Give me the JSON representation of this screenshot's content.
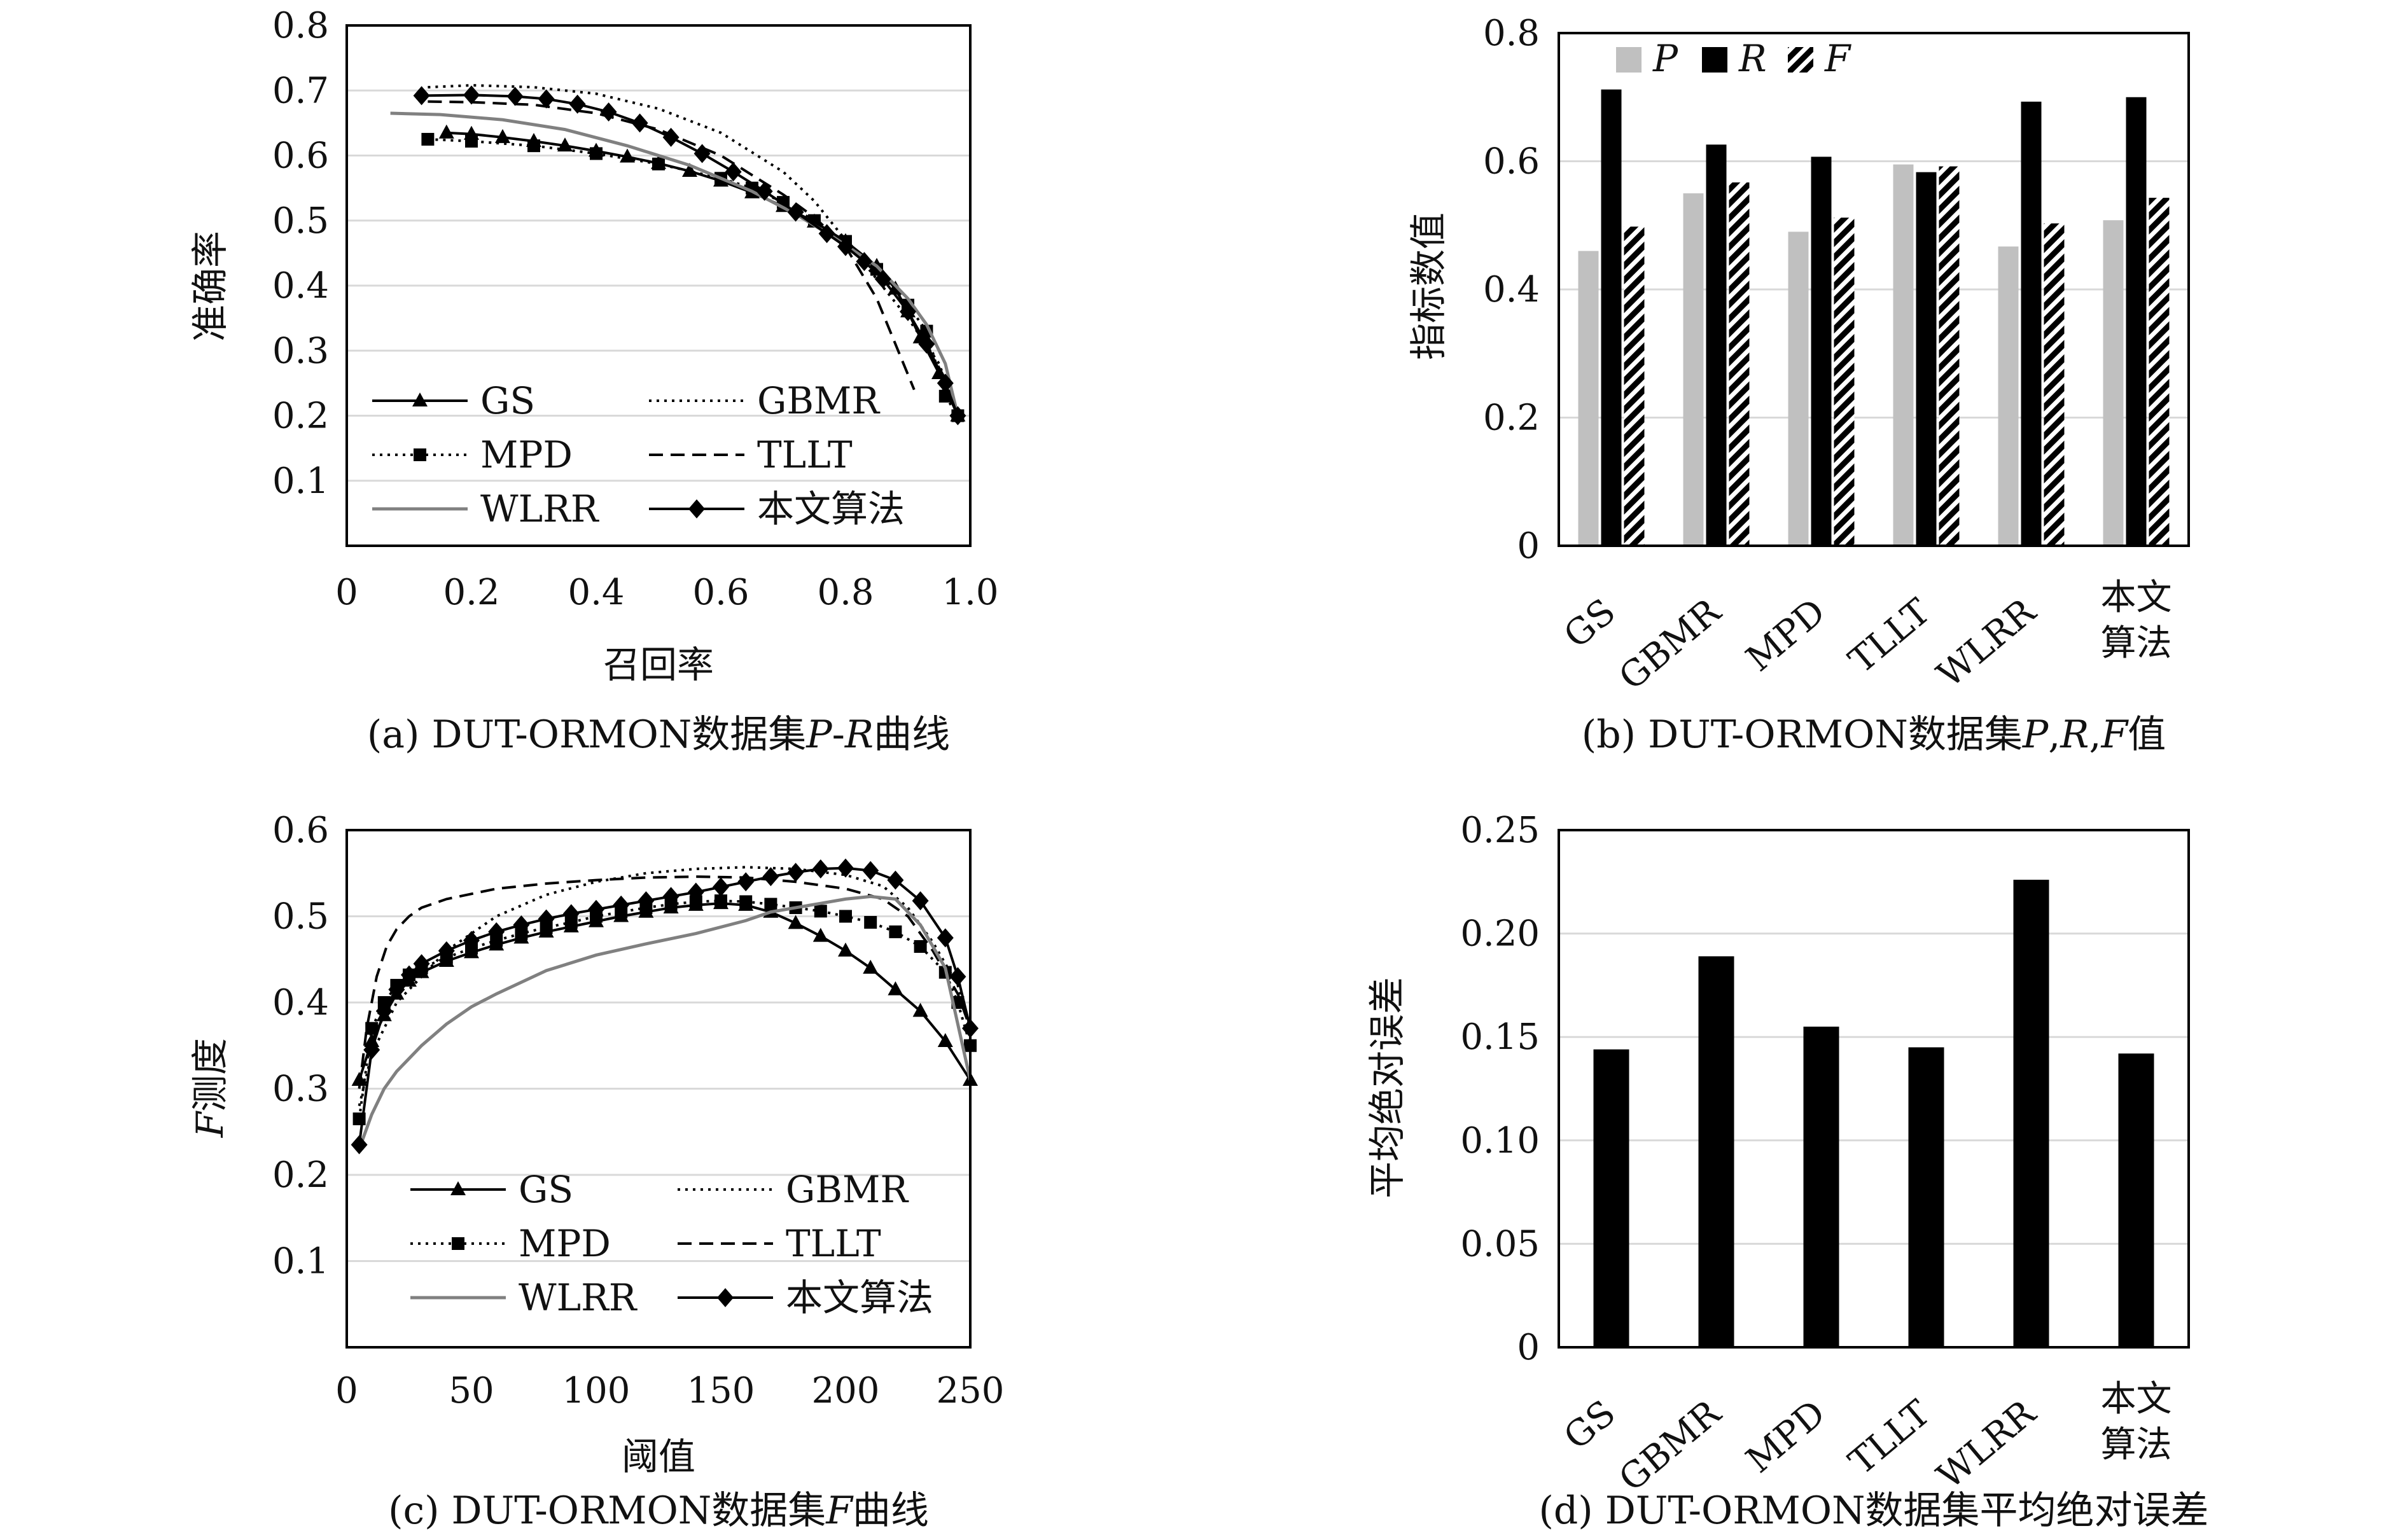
{
  "chart_data": [
    {
      "id": "a",
      "type": "line",
      "caption": "(a) DUT-ORMON数据集P-R曲线",
      "caption_parts": [
        "(a) DUT-ORMON数据集",
        "P",
        "-",
        "R",
        "曲线"
      ],
      "xlabel": "召回率",
      "ylabel": "准确率",
      "xlim": [
        0,
        1.0
      ],
      "ylim": [
        0,
        0.8
      ],
      "xticks": [
        "0",
        "0.2",
        "0.4",
        "0.6",
        "0.8",
        "1.0"
      ],
      "yticks": [
        "0.1",
        "0.2",
        "0.3",
        "0.4",
        "0.5",
        "0.6",
        "0.7",
        "0.8"
      ],
      "grid": true,
      "legend_position": "bottom-left",
      "series": [
        {
          "name": "GS",
          "style": "solid",
          "color": "#000000",
          "marker": "triangle",
          "x": [
            0.16,
            0.2,
            0.25,
            0.3,
            0.35,
            0.4,
            0.45,
            0.5,
            0.55,
            0.6,
            0.65,
            0.7,
            0.75,
            0.8,
            0.85,
            0.88,
            0.9,
            0.92,
            0.95,
            0.98
          ],
          "y": [
            0.635,
            0.633,
            0.628,
            0.622,
            0.615,
            0.607,
            0.598,
            0.588,
            0.576,
            0.561,
            0.543,
            0.522,
            0.498,
            0.468,
            0.43,
            0.395,
            0.36,
            0.32,
            0.265,
            0.2
          ]
        },
        {
          "name": "GBMR",
          "style": "dotted",
          "color": "#000000",
          "x": [
            0.13,
            0.2,
            0.3,
            0.4,
            0.5,
            0.6,
            0.7,
            0.75,
            0.8,
            0.85,
            0.9,
            0.95,
            0.98
          ],
          "y": [
            0.705,
            0.708,
            0.705,
            0.695,
            0.672,
            0.635,
            0.575,
            0.53,
            0.47,
            0.41,
            0.35,
            0.28,
            0.2
          ]
        },
        {
          "name": "MPD",
          "style": "dotted",
          "color": "#000000",
          "marker": "square",
          "x": [
            0.13,
            0.2,
            0.3,
            0.4,
            0.5,
            0.6,
            0.65,
            0.7,
            0.75,
            0.8,
            0.85,
            0.9,
            0.93,
            0.96,
            0.98
          ],
          "y": [
            0.625,
            0.622,
            0.615,
            0.603,
            0.587,
            0.565,
            0.55,
            0.528,
            0.5,
            0.468,
            0.425,
            0.37,
            0.33,
            0.23,
            0.2
          ]
        },
        {
          "name": "TLLT",
          "style": "dashed",
          "color": "#000000",
          "x": [
            0.13,
            0.2,
            0.3,
            0.4,
            0.5,
            0.6,
            0.7,
            0.75,
            0.8,
            0.85,
            0.88,
            0.91
          ],
          "y": [
            0.683,
            0.682,
            0.678,
            0.665,
            0.64,
            0.6,
            0.54,
            0.505,
            0.46,
            0.38,
            0.31,
            0.24
          ]
        },
        {
          "name": "WLRR",
          "style": "solid",
          "color": "#808080",
          "x": [
            0.07,
            0.15,
            0.25,
            0.35,
            0.45,
            0.55,
            0.65,
            0.72,
            0.78,
            0.85,
            0.9,
            0.93,
            0.96,
            0.98
          ],
          "y": [
            0.665,
            0.663,
            0.655,
            0.64,
            0.615,
            0.585,
            0.545,
            0.51,
            0.475,
            0.43,
            0.38,
            0.34,
            0.28,
            0.2
          ]
        },
        {
          "name": "本文算法",
          "style": "solid",
          "color": "#000000",
          "marker": "diamond",
          "x": [
            0.12,
            0.2,
            0.27,
            0.32,
            0.37,
            0.42,
            0.47,
            0.52,
            0.57,
            0.62,
            0.67,
            0.72,
            0.77,
            0.8,
            0.83,
            0.86,
            0.9,
            0.93,
            0.96,
            0.98
          ],
          "y": [
            0.692,
            0.693,
            0.691,
            0.687,
            0.679,
            0.667,
            0.65,
            0.628,
            0.603,
            0.575,
            0.545,
            0.513,
            0.48,
            0.46,
            0.437,
            0.41,
            0.36,
            0.31,
            0.25,
            0.2
          ]
        }
      ]
    },
    {
      "id": "b",
      "type": "bar",
      "caption": "(b) DUT-ORMON数据集P,R,F值",
      "caption_parts": [
        "(b) DUT-ORMON数据集",
        "P",
        ",",
        "R",
        ",",
        "F",
        "值"
      ],
      "ylabel": "指标数值",
      "ylim": [
        0,
        0.8
      ],
      "yticks": [
        "0",
        "0.2",
        "0.4",
        "0.6",
        "0.8"
      ],
      "categories": [
        "GS",
        "GBMR",
        "MPD",
        "TLLT",
        "WLRR",
        "本文算法"
      ],
      "category_lines": [
        [
          "GS"
        ],
        [
          "GBMR"
        ],
        [
          "MPD"
        ],
        [
          "TLLT"
        ],
        [
          "WLRR"
        ],
        [
          "本文",
          "算法"
        ]
      ],
      "grid": true,
      "legend_position": "top-left",
      "series": [
        {
          "name": "P",
          "color": "#c0c0c0",
          "pattern": "solid",
          "values": [
            0.46,
            0.55,
            0.49,
            0.595,
            0.467,
            0.508
          ]
        },
        {
          "name": "R",
          "color": "#000000",
          "pattern": "solid",
          "values": [
            0.712,
            0.626,
            0.607,
            0.583,
            0.693,
            0.7
          ]
        },
        {
          "name": "F",
          "color": "#000000",
          "pattern": "hatch",
          "values": [
            0.498,
            0.567,
            0.512,
            0.592,
            0.503,
            0.543
          ]
        }
      ]
    },
    {
      "id": "c",
      "type": "line",
      "caption": "(c) DUT-ORMON数据集F曲线",
      "caption_parts": [
        "(c) DUT-ORMON数据集",
        "F",
        "曲线"
      ],
      "xlabel": "阈值",
      "ylabel": "F测度",
      "ylabel_parts": [
        "F",
        "测度"
      ],
      "xlim": [
        0,
        250
      ],
      "ylim": [
        0,
        0.6
      ],
      "xticks": [
        "0",
        "50",
        "100",
        "150",
        "200",
        "250"
      ],
      "yticks": [
        "0.1",
        "0.2",
        "0.3",
        "0.4",
        "0.5",
        "0.6"
      ],
      "grid": true,
      "legend_position": "bottom-left",
      "series": [
        {
          "name": "GS",
          "style": "solid",
          "color": "#000000",
          "marker": "triangle",
          "x": [
            5,
            10,
            15,
            20,
            25,
            30,
            40,
            50,
            60,
            70,
            80,
            90,
            100,
            110,
            120,
            130,
            140,
            150,
            160,
            170,
            180,
            190,
            200,
            210,
            220,
            230,
            240,
            250
          ],
          "y": [
            0.31,
            0.355,
            0.385,
            0.41,
            0.425,
            0.435,
            0.448,
            0.458,
            0.467,
            0.475,
            0.482,
            0.488,
            0.494,
            0.5,
            0.505,
            0.51,
            0.513,
            0.515,
            0.513,
            0.505,
            0.492,
            0.477,
            0.46,
            0.44,
            0.415,
            0.39,
            0.355,
            0.31
          ]
        },
        {
          "name": "GBMR",
          "style": "dotted",
          "color": "#000000",
          "x": [
            5,
            10,
            20,
            30,
            40,
            60,
            80,
            100,
            120,
            140,
            160,
            180,
            200,
            215,
            225,
            235,
            245,
            250
          ],
          "y": [
            0.28,
            0.34,
            0.4,
            0.43,
            0.46,
            0.5,
            0.525,
            0.54,
            0.55,
            0.555,
            0.557,
            0.555,
            0.548,
            0.535,
            0.51,
            0.47,
            0.42,
            0.37
          ]
        },
        {
          "name": "MPD",
          "style": "dotted",
          "color": "#000000",
          "marker": "square",
          "x": [
            5,
            10,
            15,
            20,
            25,
            30,
            40,
            50,
            60,
            70,
            80,
            90,
            100,
            110,
            120,
            130,
            140,
            150,
            160,
            170,
            180,
            190,
            200,
            210,
            220,
            230,
            240,
            245,
            250
          ],
          "y": [
            0.265,
            0.37,
            0.4,
            0.42,
            0.432,
            0.44,
            0.452,
            0.463,
            0.472,
            0.48,
            0.487,
            0.493,
            0.5,
            0.505,
            0.51,
            0.514,
            0.517,
            0.518,
            0.517,
            0.514,
            0.51,
            0.506,
            0.5,
            0.493,
            0.482,
            0.465,
            0.435,
            0.4,
            0.35
          ]
        },
        {
          "name": "TLLT",
          "style": "dashed",
          "color": "#000000",
          "x": [
            5,
            8,
            12,
            16,
            20,
            25,
            30,
            40,
            60,
            80,
            100,
            120,
            140,
            160,
            180,
            200,
            215,
            225,
            235,
            245,
            250
          ],
          "y": [
            0.3,
            0.37,
            0.43,
            0.465,
            0.485,
            0.5,
            0.51,
            0.52,
            0.532,
            0.538,
            0.542,
            0.545,
            0.546,
            0.545,
            0.54,
            0.532,
            0.52,
            0.5,
            0.46,
            0.41,
            0.37
          ]
        },
        {
          "name": "WLRR",
          "style": "solid",
          "color": "#808080",
          "x": [
            5,
            10,
            15,
            20,
            30,
            40,
            50,
            60,
            80,
            100,
            120,
            140,
            160,
            170,
            180,
            190,
            200,
            210,
            220,
            230,
            240,
            250
          ],
          "y": [
            0.23,
            0.27,
            0.3,
            0.32,
            0.35,
            0.375,
            0.395,
            0.41,
            0.437,
            0.455,
            0.468,
            0.48,
            0.495,
            0.505,
            0.51,
            0.515,
            0.52,
            0.523,
            0.52,
            0.49,
            0.44,
            0.31
          ]
        },
        {
          "name": "本文算法",
          "style": "solid",
          "color": "#000000",
          "marker": "diamond",
          "x": [
            5,
            10,
            15,
            20,
            25,
            30,
            40,
            50,
            60,
            70,
            80,
            90,
            100,
            110,
            120,
            130,
            140,
            150,
            160,
            170,
            180,
            190,
            200,
            210,
            220,
            230,
            240,
            245,
            250
          ],
          "y": [
            0.235,
            0.345,
            0.39,
            0.415,
            0.432,
            0.445,
            0.46,
            0.472,
            0.482,
            0.49,
            0.497,
            0.503,
            0.508,
            0.513,
            0.518,
            0.523,
            0.528,
            0.534,
            0.54,
            0.546,
            0.551,
            0.555,
            0.556,
            0.553,
            0.542,
            0.518,
            0.475,
            0.43,
            0.37
          ]
        }
      ]
    },
    {
      "id": "d",
      "type": "bar",
      "caption": "(d) DUT-ORMON数据集平均绝对误差",
      "ylabel": "平均绝对误差",
      "ylim": [
        0,
        0.25
      ],
      "yticks": [
        "0",
        "0.05",
        "0.10",
        "0.15",
        "0.20",
        "0.25"
      ],
      "categories": [
        "GS",
        "GBMR",
        "MPD",
        "TLLT",
        "WLRR",
        "本文算法"
      ],
      "category_lines": [
        [
          "GS"
        ],
        [
          "GBMR"
        ],
        [
          "MPD"
        ],
        [
          "TLLT"
        ],
        [
          "WLRR"
        ],
        [
          "本文",
          "算法"
        ]
      ],
      "grid": true,
      "series": [
        {
          "color": "#000000",
          "values": [
            0.144,
            0.189,
            0.155,
            0.145,
            0.226,
            0.142
          ]
        }
      ]
    }
  ]
}
